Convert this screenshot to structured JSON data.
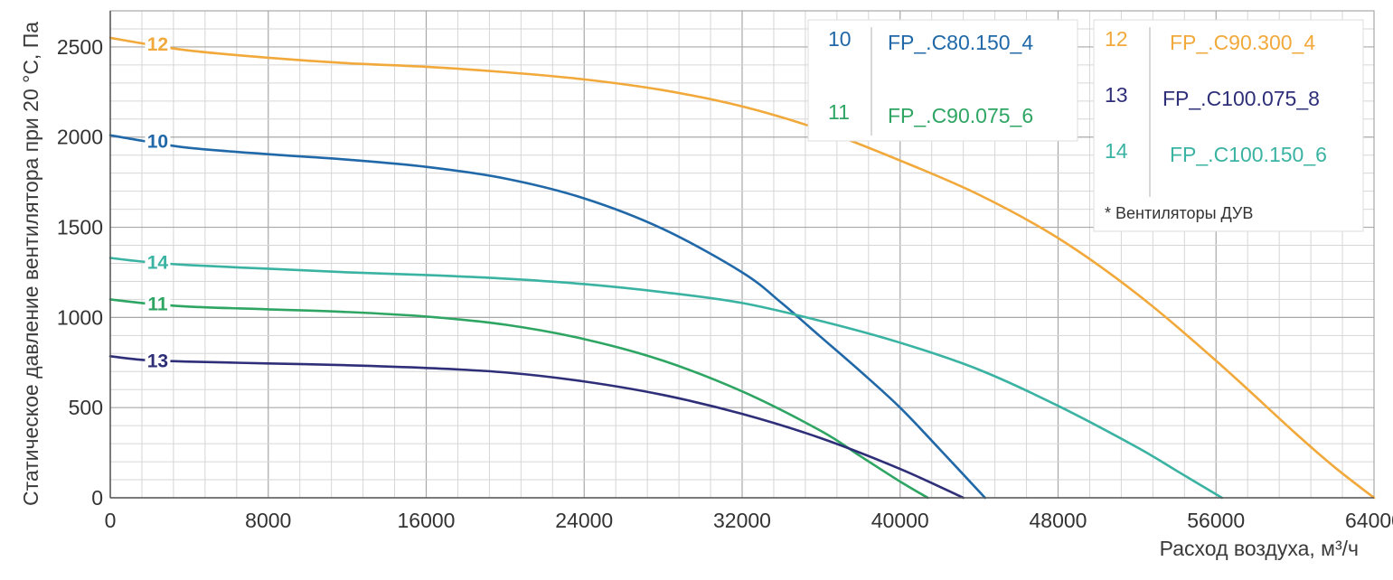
{
  "chart_data": {
    "type": "line",
    "xlabel": "Расход воздуха, м³/ч",
    "ylabel": "Статическое давление вентилятора при 20 °С, Па",
    "xlim": [
      0,
      64000
    ],
    "ylim": [
      0,
      2700
    ],
    "x_ticks": [
      0,
      8000,
      16000,
      24000,
      32000,
      40000,
      48000,
      56000,
      64000
    ],
    "y_ticks": [
      0,
      500,
      1000,
      1500,
      2000,
      2500
    ],
    "grid": true,
    "legend_placement": "top-right",
    "series": [
      {
        "id": "12",
        "name": "FP_.C90.300_4",
        "color": "#F2A93B",
        "x": [
          0,
          1600,
          4000,
          8000,
          12000,
          16000,
          20000,
          24000,
          28000,
          32000,
          36000,
          40000,
          44000,
          48000,
          52000,
          56000,
          60000,
          62000,
          64000
        ],
        "y": [
          2550,
          2520,
          2480,
          2440,
          2410,
          2390,
          2360,
          2320,
          2260,
          2170,
          2040,
          1870,
          1680,
          1440,
          1130,
          760,
          360,
          170,
          0
        ]
      },
      {
        "id": "10",
        "name": "FP_.C80.150_4",
        "color": "#2068A8",
        "x": [
          0,
          1600,
          4000,
          8000,
          12000,
          16000,
          20000,
          24000,
          28000,
          32000,
          34000,
          36000,
          38000,
          40000,
          42000,
          44300
        ],
        "y": [
          2010,
          1980,
          1940,
          1905,
          1875,
          1835,
          1770,
          1660,
          1490,
          1250,
          1080,
          890,
          700,
          500,
          270,
          0
        ]
      },
      {
        "id": "14",
        "name": "FP_.C100.150_6",
        "color": "#3AB3A3",
        "x": [
          0,
          1600,
          4000,
          8000,
          12000,
          16000,
          20000,
          24000,
          28000,
          32000,
          36000,
          40000,
          44000,
          48000,
          52000,
          54000,
          56300
        ],
        "y": [
          1330,
          1310,
          1290,
          1270,
          1250,
          1235,
          1215,
          1185,
          1140,
          1080,
          980,
          860,
          710,
          510,
          280,
          150,
          0
        ]
      },
      {
        "id": "11",
        "name": "FP_.C90.075_6",
        "color": "#2EA563",
        "x": [
          0,
          1600,
          4000,
          8000,
          12000,
          16000,
          20000,
          24000,
          28000,
          32000,
          36000,
          38000,
          40000,
          41400
        ],
        "y": [
          1100,
          1080,
          1060,
          1045,
          1030,
          1005,
          960,
          880,
          760,
          590,
          370,
          230,
          90,
          0
        ]
      },
      {
        "id": "13",
        "name": "FP_.C100.075_8",
        "color": "#2E2F78",
        "x": [
          0,
          1600,
          4000,
          8000,
          12000,
          16000,
          20000,
          24000,
          28000,
          32000,
          36000,
          40000,
          43200
        ],
        "y": [
          785,
          765,
          755,
          745,
          735,
          720,
          695,
          645,
          570,
          465,
          330,
          160,
          0
        ]
      }
    ],
    "legend": {
      "box1": [
        {
          "num": "10",
          "name": "FP_.C80.150_4",
          "color": "#2068A8"
        },
        {
          "num": "11",
          "name": "FP_.C90.075_6",
          "color": "#2EA563"
        }
      ],
      "box2": [
        {
          "num": "12",
          "name": "FP_.C90.300_4",
          "color": "#F2A93B"
        },
        {
          "num": "13",
          "name": "FP_.C100.075_8",
          "color": "#2E2F78"
        },
        {
          "num": "14",
          "name": "FP_.C100.150_6",
          "color": "#3AB3A3"
        }
      ],
      "note": "* Вентиляторы ДУВ"
    }
  }
}
